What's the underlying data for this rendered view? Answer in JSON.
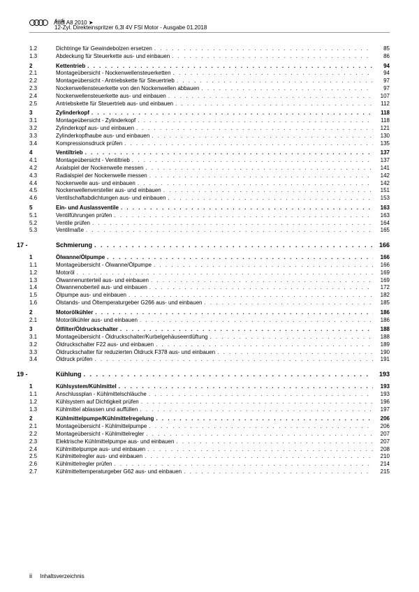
{
  "header": {
    "model": "Audi A8 2010 ➤",
    "subtitle": "12-Zyl. Direkteinspritzer 6,3l 4V FSI Motor - Ausgabe 01.2018",
    "brand": "Audi"
  },
  "toc": [
    {
      "num": "1.2",
      "title": "Dichtringe für Gewindebolzen ersetzen",
      "page": "85",
      "bold": false
    },
    {
      "num": "1.3",
      "title": "Abdeckung für Steuerkette aus- und einbauen",
      "page": "86",
      "bold": false
    },
    {
      "num": "2",
      "title": "Kettentrieb",
      "page": "94",
      "bold": true
    },
    {
      "num": "2.1",
      "title": "Montageübersicht - Nockenwellensteuerketten",
      "page": "94",
      "bold": false
    },
    {
      "num": "2.2",
      "title": "Montageübersicht - Antriebskette für Steuertrieb",
      "page": "97",
      "bold": false
    },
    {
      "num": "2.3",
      "title": "Nockenwellensteuerkette von den Nockenwellen abbauen",
      "page": "97",
      "bold": false
    },
    {
      "num": "2.4",
      "title": "Nockenwellensteuerkette aus- und einbauen",
      "page": "107",
      "bold": false
    },
    {
      "num": "2.5",
      "title": "Antriebskette für Steuertrieb aus- und einbauen",
      "page": "112",
      "bold": false
    },
    {
      "num": "3",
      "title": "Zylinderkopf",
      "page": "118",
      "bold": true
    },
    {
      "num": "3.1",
      "title": "Montageübersicht - Zylinderkopf",
      "page": "118",
      "bold": false
    },
    {
      "num": "3.2",
      "title": "Zylinderkopf aus- und einbauen",
      "page": "121",
      "bold": false
    },
    {
      "num": "3.3",
      "title": "Zylinderkopfhaube aus- und einbauen",
      "page": "130",
      "bold": false
    },
    {
      "num": "3.4",
      "title": "Kompressionsdruck prüfen",
      "page": "135",
      "bold": false
    },
    {
      "num": "4",
      "title": "Ventiltrieb",
      "page": "137",
      "bold": true
    },
    {
      "num": "4.1",
      "title": "Montageübersicht - Ventiltrieb",
      "page": "137",
      "bold": false
    },
    {
      "num": "4.2",
      "title": "Axialspiel der Nockenwelle messen",
      "page": "141",
      "bold": false
    },
    {
      "num": "4.3",
      "title": "Radialspiel der Nockenwelle messen",
      "page": "142",
      "bold": false
    },
    {
      "num": "4.4",
      "title": "Nockenwelle aus- und einbauen",
      "page": "142",
      "bold": false
    },
    {
      "num": "4.5",
      "title": "Nockenwellenversteller aus- und einbauen",
      "page": "151",
      "bold": false
    },
    {
      "num": "4.6",
      "title": "Ventilschaftabdichtungen aus- und einbauen",
      "page": "153",
      "bold": false
    },
    {
      "num": "5",
      "title": "Ein- und Auslassventile",
      "page": "163",
      "bold": true
    },
    {
      "num": "5.1",
      "title": "Ventilführungen prüfen",
      "page": "163",
      "bold": false
    },
    {
      "num": "5.2",
      "title": "Ventile prüfen",
      "page": "164",
      "bold": false
    },
    {
      "num": "5.3",
      "title": "Ventilmaße",
      "page": "165",
      "bold": false
    }
  ],
  "chapter17": {
    "num": "17 -",
    "title": "Schmierung",
    "page": "166"
  },
  "toc17": [
    {
      "num": "1",
      "title": "Ölwanne/Ölpumpe",
      "page": "166",
      "bold": true
    },
    {
      "num": "1.1",
      "title": "Montageübersicht - Ölwanne/Ölpumpe",
      "page": "166",
      "bold": false
    },
    {
      "num": "1.2",
      "title": "Motoröl",
      "page": "169",
      "bold": false
    },
    {
      "num": "1.3",
      "title": "Ölwannenunterteil aus- und einbauen",
      "page": "169",
      "bold": false
    },
    {
      "num": "1.4",
      "title": "Ölwannenoberteil aus- und einbauen",
      "page": "172",
      "bold": false
    },
    {
      "num": "1.5",
      "title": "Ölpumpe aus- und einbauen",
      "page": "182",
      "bold": false
    },
    {
      "num": "1.6",
      "title": "Ölstands- und Öltemperaturgeber G266 aus- und einbauen",
      "page": "185",
      "bold": false
    },
    {
      "num": "2",
      "title": "Motorölkühler",
      "page": "186",
      "bold": true
    },
    {
      "num": "2.1",
      "title": "Motorölkühler aus- und einbauen",
      "page": "186",
      "bold": false
    },
    {
      "num": "3",
      "title": "Ölfilter/Öldruckschalter",
      "page": "188",
      "bold": true
    },
    {
      "num": "3.1",
      "title": "Montageübersicht - Öldruckschalter/Kurbelgehäuseentlüftung",
      "page": "188",
      "bold": false
    },
    {
      "num": "3.2",
      "title": "Öldruckschalter F22 aus- und einbauen",
      "page": "189",
      "bold": false
    },
    {
      "num": "3.3",
      "title": "Öldruckschalter für reduzierten Öldruck F378 aus- und einbauen",
      "page": "190",
      "bold": false
    },
    {
      "num": "3.4",
      "title": "Öldruck prüfen",
      "page": "191",
      "bold": false
    }
  ],
  "chapter19": {
    "num": "19 -",
    "title": "Kühlung",
    "page": "193"
  },
  "toc19": [
    {
      "num": "1",
      "title": "Kühlsystem/Kühlmittel",
      "page": "193",
      "bold": true
    },
    {
      "num": "1.1",
      "title": "Anschlussplan - Kühlmittelschläuche",
      "page": "193",
      "bold": false
    },
    {
      "num": "1.2",
      "title": "Kühlsystem auf Dichtigkeit prüfen",
      "page": "196",
      "bold": false
    },
    {
      "num": "1.3",
      "title": "Kühlmittel ablassen und auffüllen",
      "page": "197",
      "bold": false
    },
    {
      "num": "2",
      "title": "Kühlmittelpumpe/Kühlmittelregelung",
      "page": "206",
      "bold": true
    },
    {
      "num": "2.1",
      "title": "Montageübersicht - Kühlmittelpumpe",
      "page": "206",
      "bold": false
    },
    {
      "num": "2.2",
      "title": "Montageübersicht - Kühlmittelregler",
      "page": "207",
      "bold": false
    },
    {
      "num": "2.3",
      "title": "Elektrische Kühlmittelpumpe aus- und einbauen",
      "page": "207",
      "bold": false
    },
    {
      "num": "2.4",
      "title": "Kühlmittelpumpe aus- und einbauen",
      "page": "208",
      "bold": false
    },
    {
      "num": "2.5",
      "title": "Kühlmittelregler aus- und einbauen",
      "page": "210",
      "bold": false
    },
    {
      "num": "2.6",
      "title": "Kühlmittelregler prüfen",
      "page": "214",
      "bold": false
    },
    {
      "num": "2.7",
      "title": "Kühlmitteltemperaturgeber G62 aus- und einbauen",
      "page": "215",
      "bold": false
    }
  ],
  "footer": {
    "pagenum": "ii",
    "label": "Inhaltsverzeichnis"
  }
}
